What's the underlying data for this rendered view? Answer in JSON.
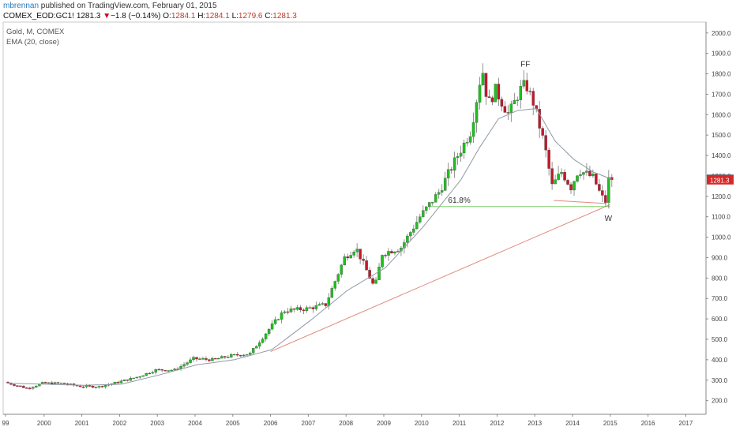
{
  "header": {
    "user": "mbrennan",
    "published": " published on TradingView.com, February 01, 2015",
    "symbol": "COMEX_EOD:GC1!",
    "last": "1281.3",
    "arrow": "▼",
    "change": "−1.8 (−0.14%)",
    "open_label": "O:",
    "open": "1284.1",
    "high_label": "H:",
    "high": "1284.1",
    "low_label": "L:",
    "low": "1279.6",
    "close_label": "C:",
    "close": "1281.3"
  },
  "legend": {
    "title": "Gold, M, COMEX",
    "ema": "EMA (20, close)"
  },
  "colors": {
    "up": "#1fbf1f",
    "down": "#c0192b",
    "ema": "#8f99a4",
    "trend": "#e08a7e",
    "fib": "#7fcf6a",
    "ema_badge": "#5f7f8f",
    "price_badge": "#d62828"
  },
  "chart_data": {
    "type": "candlestick",
    "title": "Gold, M, COMEX",
    "x_ticks": [
      "99",
      "2000",
      "2001",
      "2002",
      "2003",
      "2004",
      "2005",
      "2006",
      "2007",
      "2008",
      "2009",
      "2010",
      "2011",
      "2012",
      "2013",
      "2014",
      "2015",
      "2016",
      "2017"
    ],
    "y_ticks": [
      "2000.0",
      "1900.0",
      "1800.0",
      "1700.0",
      "1600.0",
      "1500.0",
      "1400.0",
      "1300.0",
      "1200.0",
      "1100.0",
      "1000.0",
      "900.0",
      "800.0",
      "700.0",
      "600.0",
      "500.0",
      "400.0",
      "300.0",
      "200.0"
    ],
    "ylim": [
      160,
      2030
    ],
    "last_price": "1281.3",
    "ema_last": "1283.7",
    "annotations": [
      {
        "text": "FF",
        "x": 2012.75,
        "y": 1835
      },
      {
        "text": "61.8%",
        "x": 2011.0,
        "y": 1168
      },
      {
        "text": "W",
        "x": 2014.95,
        "y": 1080
      }
    ],
    "fib_line": {
      "label": "61.8%",
      "x1": 2010.25,
      "x2": 2015.0,
      "y": 1150
    },
    "trendline": {
      "x1": 2006.0,
      "y1": 440,
      "x2": 2015.0,
      "y2": 1160
    },
    "support_line": {
      "x1": 2013.5,
      "y1": 1180,
      "x2": 2014.9,
      "y2": 1165
    },
    "series_knots": [
      [
        1999.0,
        290
      ],
      [
        1999.6,
        260
      ],
      [
        2000.0,
        285
      ],
      [
        2000.5,
        285
      ],
      [
        2001.0,
        270
      ],
      [
        2001.5,
        268
      ],
      [
        2002.0,
        290
      ],
      [
        2002.5,
        315
      ],
      [
        2003.0,
        350
      ],
      [
        2003.5,
        350
      ],
      [
        2004.0,
        405
      ],
      [
        2004.5,
        400
      ],
      [
        2005.0,
        420
      ],
      [
        2005.5,
        430
      ],
      [
        2006.0,
        550
      ],
      [
        2006.4,
        640
      ],
      [
        2007.0,
        650
      ],
      [
        2007.5,
        670
      ],
      [
        2008.0,
        900
      ],
      [
        2008.3,
        950
      ],
      [
        2008.8,
        750
      ],
      [
        2009.0,
        920
      ],
      [
        2009.5,
        950
      ],
      [
        2010.0,
        1100
      ],
      [
        2010.5,
        1220
      ],
      [
        2011.0,
        1400
      ],
      [
        2011.35,
        1520
      ],
      [
        2011.65,
        1830
      ],
      [
        2011.8,
        1650
      ],
      [
        2012.0,
        1720
      ],
      [
        2012.35,
        1600
      ],
      [
        2012.65,
        1720
      ],
      [
        2012.8,
        1750
      ],
      [
        2013.0,
        1660
      ],
      [
        2013.3,
        1450
      ],
      [
        2013.5,
        1250
      ],
      [
        2013.75,
        1320
      ],
      [
        2014.0,
        1245
      ],
      [
        2014.2,
        1330
      ],
      [
        2014.6,
        1290
      ],
      [
        2014.8,
        1200
      ],
      [
        2014.92,
        1175
      ],
      [
        2015.0,
        1281.3
      ]
    ],
    "ema_knots": [
      [
        1999.0,
        285
      ],
      [
        2000.0,
        280
      ],
      [
        2001.0,
        275
      ],
      [
        2002.0,
        280
      ],
      [
        2003.0,
        325
      ],
      [
        2004.0,
        375
      ],
      [
        2005.0,
        400
      ],
      [
        2006.0,
        450
      ],
      [
        2007.0,
        590
      ],
      [
        2008.0,
        740
      ],
      [
        2009.0,
        850
      ],
      [
        2010.0,
        1050
      ],
      [
        2011.0,
        1280
      ],
      [
        2011.5,
        1440
      ],
      [
        2012.0,
        1580
      ],
      [
        2012.5,
        1620
      ],
      [
        2013.0,
        1630
      ],
      [
        2013.5,
        1470
      ],
      [
        2014.0,
        1380
      ],
      [
        2014.5,
        1320
      ],
      [
        2015.0,
        1283.7
      ]
    ]
  }
}
